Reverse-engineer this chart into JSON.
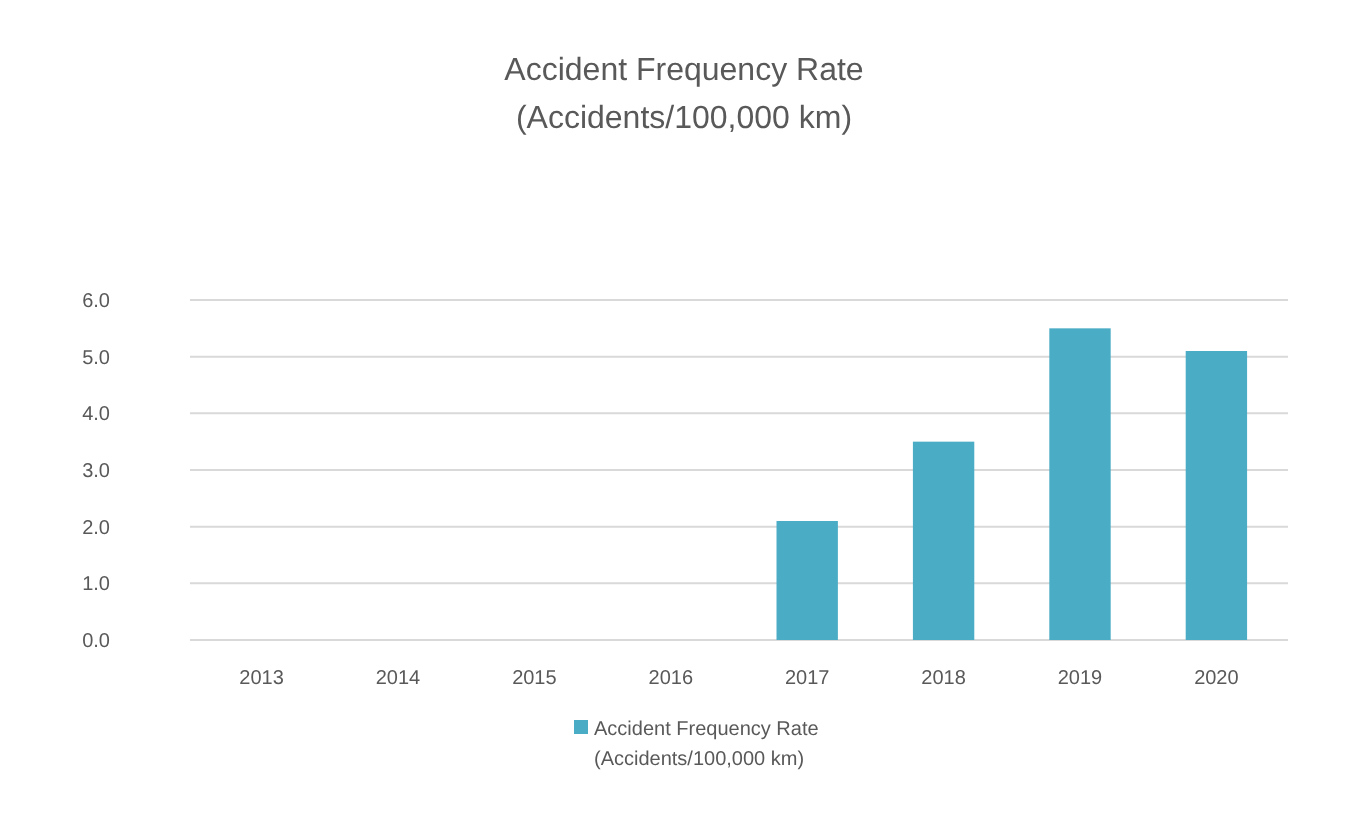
{
  "chart_data": {
    "type": "bar",
    "title": "Accident Frequency Rate\n(Accidents/100,000 km)",
    "categories": [
      "2013",
      "2014",
      "2015",
      "2016",
      "2017",
      "2018",
      "2019",
      "2020"
    ],
    "series": [
      {
        "name": "Accident Frequency Rate\n(Accidents/100,000 km)",
        "color": "#4bacc6",
        "values": [
          null,
          null,
          null,
          null,
          2.1,
          3.5,
          5.5,
          5.1
        ]
      }
    ],
    "ylim": [
      0,
      6
    ],
    "yticks": [
      {
        "value": 0,
        "label": "0.0"
      },
      {
        "value": 1,
        "label": "1.0"
      },
      {
        "value": 2,
        "label": "2.0"
      },
      {
        "value": 3,
        "label": "3.0"
      },
      {
        "value": 4,
        "label": "4.0"
      },
      {
        "value": 5,
        "label": "5.0"
      },
      {
        "value": 6,
        "label": "6.0"
      }
    ],
    "grid": true,
    "legend": "bottom"
  }
}
